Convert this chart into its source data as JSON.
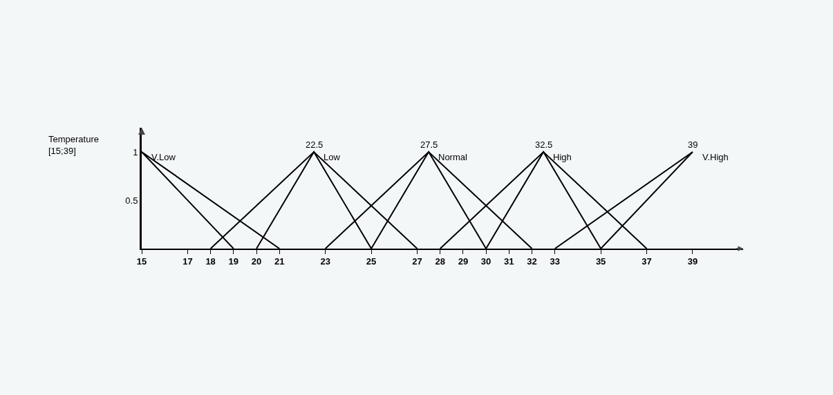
{
  "chart_data": {
    "type": "line",
    "ylabel": "Temperature\n[15;39]",
    "xlim": [
      15,
      41.2
    ],
    "ylim": [
      0,
      1.25
    ],
    "xticks": [
      15,
      17,
      18,
      19,
      20,
      21,
      23,
      25,
      27,
      28,
      29,
      30,
      31,
      32,
      33,
      35,
      37,
      39
    ],
    "yticks": [
      0.5,
      1
    ],
    "grid": false,
    "marker": "none",
    "line_style": "solid",
    "series": [
      {
        "color": "#000000",
        "x": [
          15,
          19
        ],
        "values": [
          1,
          0
        ]
      },
      {
        "color": "#000000",
        "x": [
          15,
          21
        ],
        "values": [
          1,
          0
        ]
      },
      {
        "color": "#000000",
        "x": [
          18,
          22.5,
          27
        ],
        "values": [
          0,
          1,
          0
        ]
      },
      {
        "color": "#000000",
        "x": [
          20,
          22.5,
          25
        ],
        "values": [
          0,
          1,
          0
        ]
      },
      {
        "color": "#000000",
        "x": [
          23,
          27.5,
          32
        ],
        "values": [
          0,
          1,
          0
        ]
      },
      {
        "color": "#000000",
        "x": [
          25,
          27.5,
          30
        ],
        "values": [
          0,
          1,
          0
        ]
      },
      {
        "color": "#000000",
        "x": [
          28,
          32.5,
          37
        ],
        "values": [
          0,
          1,
          0
        ]
      },
      {
        "color": "#000000",
        "x": [
          30,
          32.5,
          35
        ],
        "values": [
          0,
          1,
          0
        ]
      },
      {
        "color": "#000000",
        "x": [
          33,
          39
        ],
        "values": [
          0,
          1
        ]
      },
      {
        "color": "#000000",
        "x": [
          35,
          39
        ],
        "values": [
          0,
          1
        ]
      }
    ],
    "annotations": [
      {
        "text": "V.Low",
        "x": 15,
        "y": 1
      },
      {
        "text": "Low",
        "x": 22.5,
        "y": 1
      },
      {
        "text": "Normal",
        "x": 27.5,
        "y": 1
      },
      {
        "text": "High",
        "x": 32.5,
        "y": 1
      },
      {
        "text": "V.High",
        "x": 39,
        "y": 1
      },
      {
        "text": "22.5",
        "x": 22.5,
        "y": 1
      },
      {
        "text": "27.5",
        "x": 27.5,
        "y": 1
      },
      {
        "text": "32.5",
        "x": 32.5,
        "y": 1
      },
      {
        "text": "39",
        "x": 39,
        "y": 1
      }
    ]
  }
}
